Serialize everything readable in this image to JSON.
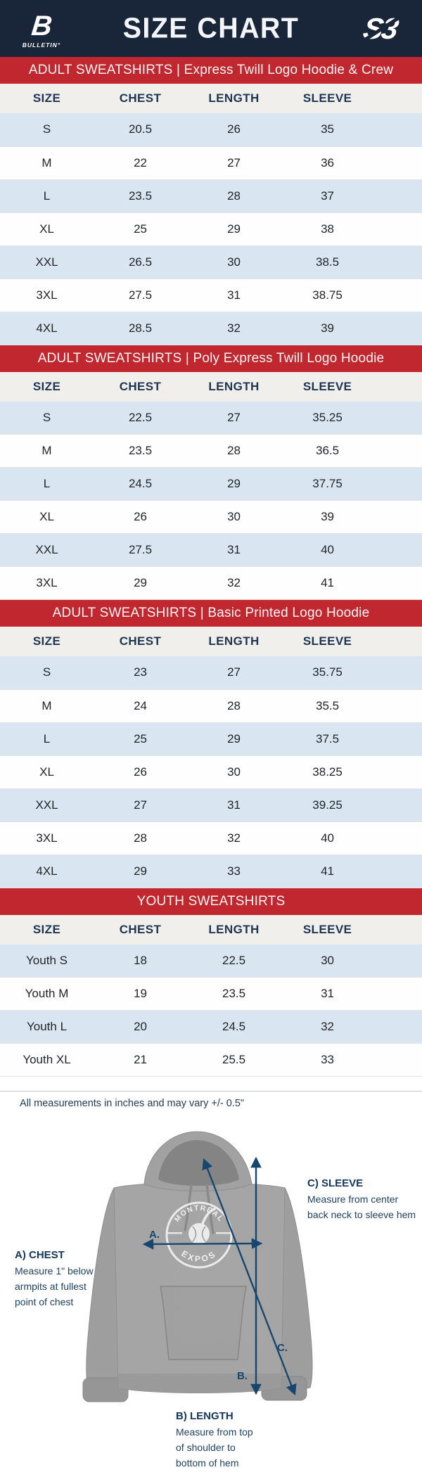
{
  "header": {
    "title": "SIZE CHART",
    "left_logo": {
      "mark": "B",
      "label": "BULLETIN°"
    },
    "right_logo": {
      "mark": "S3"
    }
  },
  "columns": [
    "SIZE",
    "CHEST",
    "LENGTH",
    "SLEEVE"
  ],
  "sections": [
    {
      "banner": "ADULT SWEATSHIRTS | Express Twill Logo Hoodie & Crew",
      "rows": [
        [
          "S",
          "20.5",
          "26",
          "35"
        ],
        [
          "M",
          "22",
          "27",
          "36"
        ],
        [
          "L",
          "23.5",
          "28",
          "37"
        ],
        [
          "XL",
          "25",
          "29",
          "38"
        ],
        [
          "XXL",
          "26.5",
          "30",
          "38.5"
        ],
        [
          "3XL",
          "27.5",
          "31",
          "38.75"
        ],
        [
          "4XL",
          "28.5",
          "32",
          "39"
        ]
      ]
    },
    {
      "banner": "ADULT SWEATSHIRTS | Poly Express Twill Logo Hoodie",
      "rows": [
        [
          "S",
          "22.5",
          "27",
          "35.25"
        ],
        [
          "M",
          "23.5",
          "28",
          "36.5"
        ],
        [
          "L",
          "24.5",
          "29",
          "37.75"
        ],
        [
          "XL",
          "26",
          "30",
          "39"
        ],
        [
          "XXL",
          "27.5",
          "31",
          "40"
        ],
        [
          "3XL",
          "29",
          "32",
          "41"
        ]
      ]
    },
    {
      "banner": "ADULT SWEATSHIRTS | Basic Printed Logo Hoodie",
      "rows": [
        [
          "S",
          "23",
          "27",
          "35.75"
        ],
        [
          "M",
          "24",
          "28",
          "35.5"
        ],
        [
          "L",
          "25",
          "29",
          "37.5"
        ],
        [
          "XL",
          "26",
          "30",
          "38.25"
        ],
        [
          "XXL",
          "27",
          "31",
          "39.25"
        ],
        [
          "3XL",
          "28",
          "32",
          "40"
        ],
        [
          "4XL",
          "29",
          "33",
          "41"
        ]
      ]
    },
    {
      "banner": "YOUTH SWEATSHIRTS",
      "rows": [
        [
          "Youth S",
          "18",
          "22.5",
          "30"
        ],
        [
          "Youth M",
          "19",
          "23.5",
          "31"
        ],
        [
          "Youth L",
          "20",
          "24.5",
          "32"
        ],
        [
          "Youth XL",
          "21",
          "25.5",
          "33"
        ]
      ]
    }
  ],
  "footer": {
    "note": "All measurements in inches and may vary +/- 0.5\"",
    "hoodie_logo": {
      "top": "MONTRÉAL",
      "bottom": "EXPOS"
    },
    "annotations": {
      "chest": {
        "label": "A.",
        "title": "A) CHEST",
        "line1": "Measure 1\" below",
        "line2": "armpits at fullest",
        "line3": "point of chest"
      },
      "length": {
        "label": "B.",
        "title": "B) LENGTH",
        "line1": "Measure from top",
        "line2": "of shoulder to",
        "line3": "bottom of hem"
      },
      "sleeve": {
        "label": "C.",
        "title": "C) SLEEVE",
        "line1": "Measure from center",
        "line2": "back neck to sleeve hem",
        "line3": ""
      }
    }
  },
  "colors": {
    "navy_header": "#192539",
    "banner_red": "#c1272e",
    "row_blue": "#d9e6f1",
    "table_header_gray": "#f0efec",
    "arrow_navy": "#17466e"
  }
}
